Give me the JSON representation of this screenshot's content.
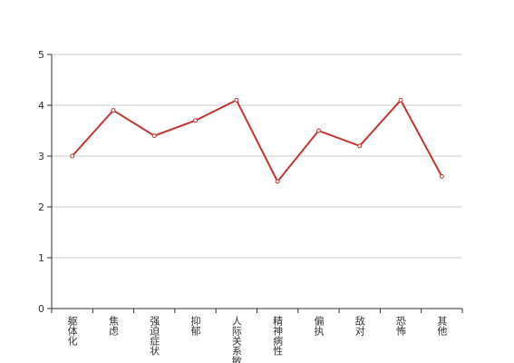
{
  "chart_data": {
    "type": "line",
    "categories": [
      "躯体化",
      "焦虑",
      "强迫症状",
      "抑郁",
      "人际关系敏感",
      "精神病性",
      "偏执",
      "敌对",
      "恐怖",
      "其他"
    ],
    "values": [
      3.0,
      3.9,
      3.4,
      3.7,
      4.1,
      2.5,
      3.5,
      3.2,
      4.1,
      2.6
    ],
    "color": "#c23531",
    "ylim": [
      0,
      5
    ],
    "yticks": [
      0,
      1,
      2,
      3,
      4,
      5
    ],
    "grid": true
  }
}
